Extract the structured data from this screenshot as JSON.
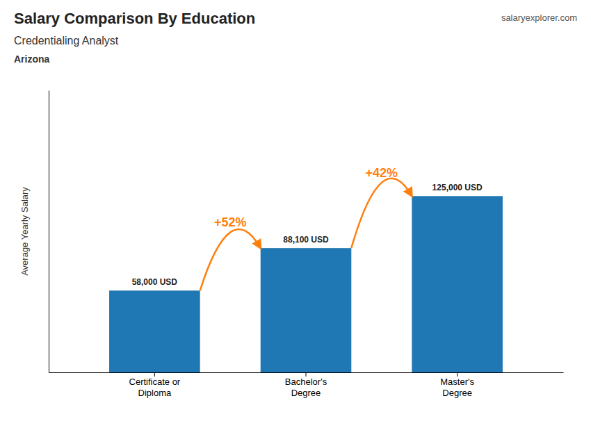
{
  "chart_data": {
    "type": "bar",
    "title": "Salary Comparison By Education",
    "subtitle": "Credentialing Analyst",
    "y_label": "Average Yearly Salary",
    "categories": [
      "Certificate or\nDiploma",
      "Bachelor's\nDegree",
      "Master's\nDegree"
    ],
    "values": [
      58000,
      88100,
      125000
    ],
    "value_labels": [
      "58,000 USD",
      "88,100 USD",
      "125,000 USD"
    ],
    "data_labels": true,
    "annotations": [
      "+52%",
      "+42%",
      "Arizona",
      "salaryexplorer.com"
    ],
    "ylim": [
      0,
      200000
    ],
    "tick_labels": "x"
  }
}
